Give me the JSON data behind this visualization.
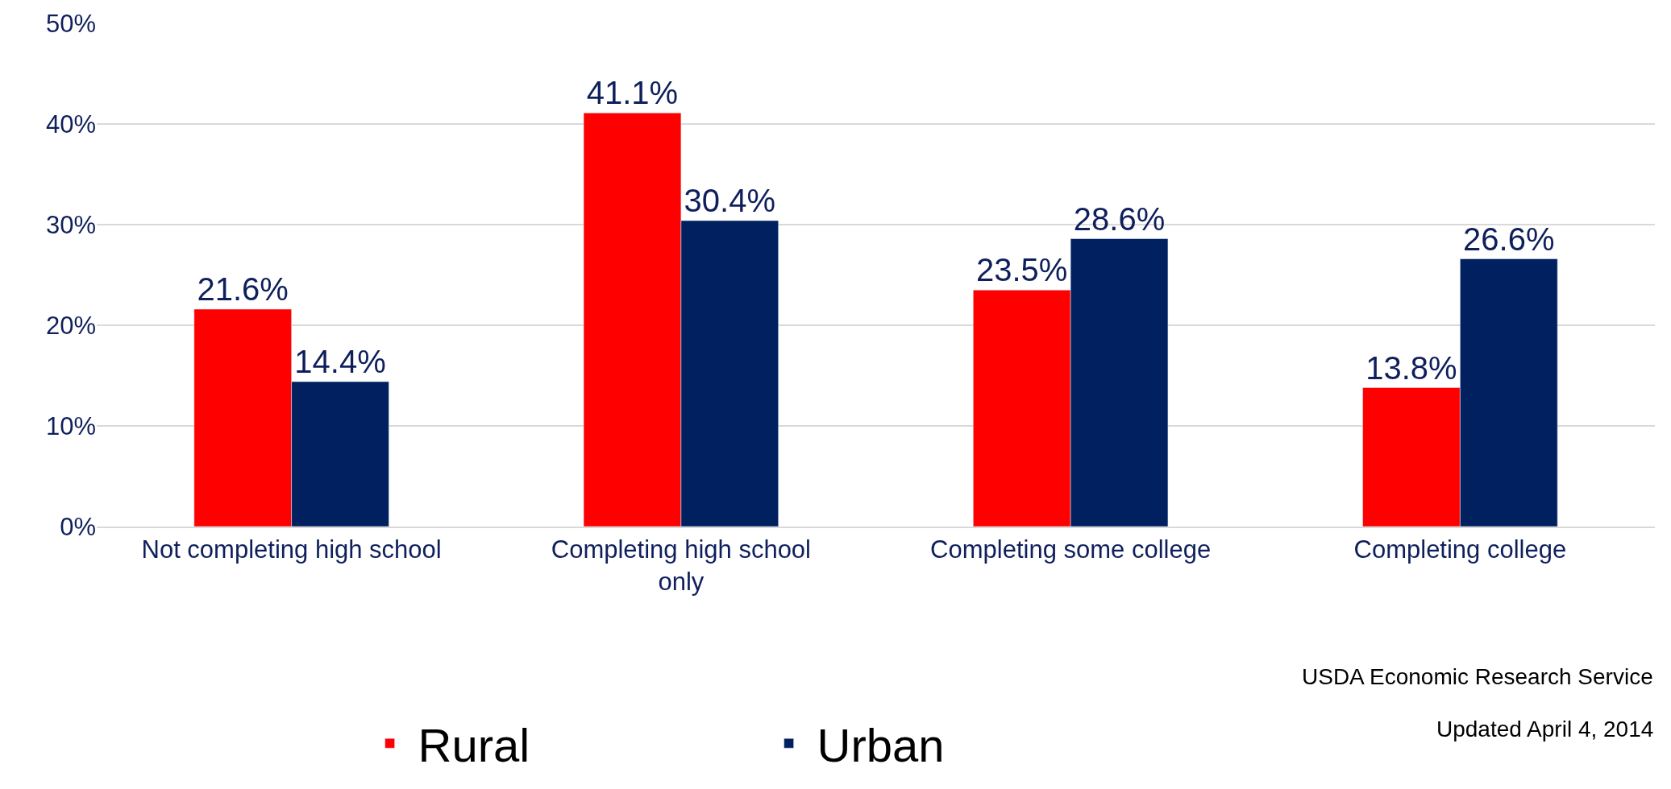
{
  "chart_data": {
    "type": "bar",
    "categories": [
      "Not completing high school",
      "Completing high school only",
      "Completing some college",
      "Completing college"
    ],
    "series": [
      {
        "name": "Rural",
        "color": "#ff0000",
        "values": [
          21.6,
          41.1,
          23.5,
          13.8
        ],
        "value_labels": [
          "21.6%",
          "41.1%",
          "23.5%",
          "13.8%"
        ]
      },
      {
        "name": "Urban",
        "color": "#002060",
        "values": [
          14.4,
          30.4,
          28.6,
          26.6
        ],
        "value_labels": [
          "14.4%",
          "30.4%",
          "28.6%",
          "26.6%"
        ]
      }
    ],
    "ylim": [
      0,
      50
    ],
    "yticks": [
      {
        "value": 0,
        "label": "0%"
      },
      {
        "value": 10,
        "label": "10%"
      },
      {
        "value": 20,
        "label": "20%"
      },
      {
        "value": 30,
        "label": "30%"
      },
      {
        "value": 40,
        "label": "40%"
      },
      {
        "value": 50,
        "label": "50%"
      }
    ],
    "grid": "y",
    "legend": "bottom",
    "annotations": [
      "USDA Economic Research Service",
      "Updated April 4, 2014"
    ]
  }
}
